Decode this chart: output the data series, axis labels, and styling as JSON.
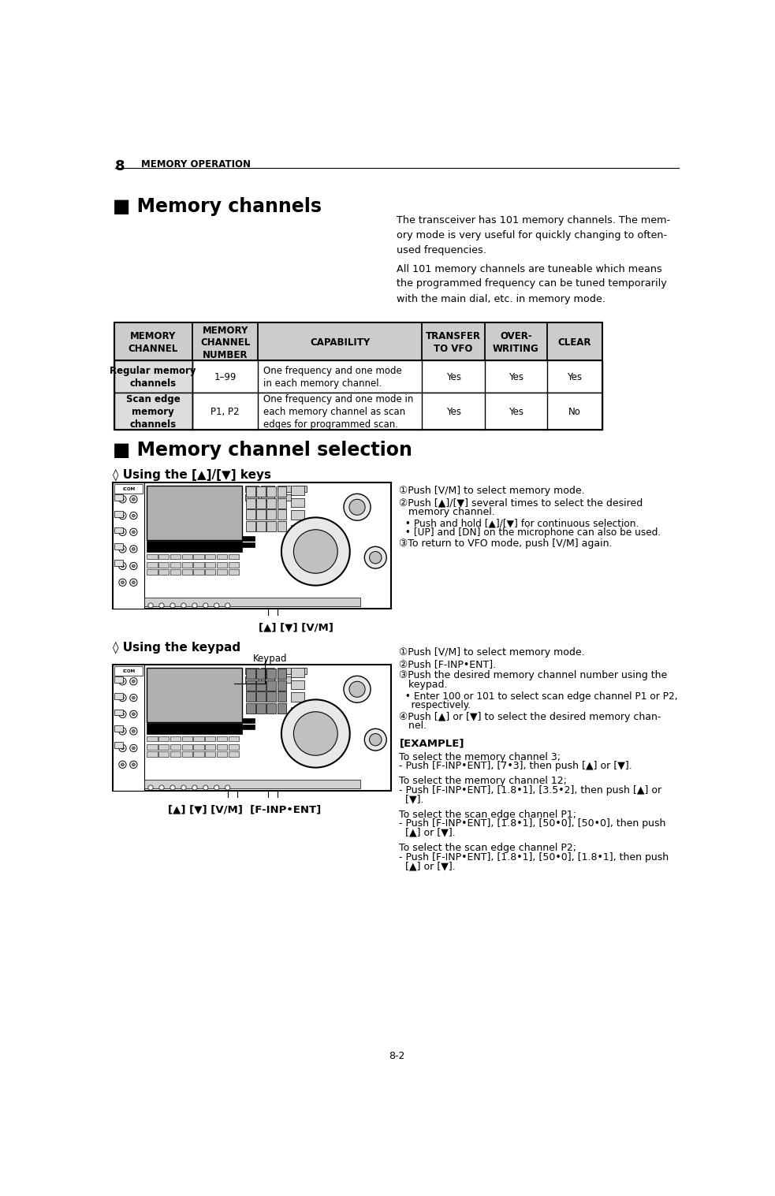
{
  "page_number": "8",
  "header_title": "MEMORY OPERATION",
  "section1_title": "■ Memory channels",
  "para1": "The transceiver has 101 memory channels. The mem-\nory mode is very useful for quickly changing to often-\nused frequencies.",
  "para2": "All 101 memory channels are tuneable which means\nthe programmed frequency can be tuned temporarily\nwith the main dial, etc. in memory mode.",
  "table_headers": [
    "MEMORY\nCHANNEL",
    "MEMORY\nCHANNEL\nNUMBER",
    "CAPABILITY",
    "TRANSFER\nTO VFO",
    "OVER-\nWRITING",
    "CLEAR"
  ],
  "table_row1_col1": "Regular memory\nchannels",
  "table_row1_col2": "1–99",
  "table_row1_col3": "One frequency and one mode\nin each memory channel.",
  "table_row1_col4": "Yes",
  "table_row1_col5": "Yes",
  "table_row1_col6": "Yes",
  "table_row2_col1": "Scan edge\nmemory\nchannels",
  "table_row2_col2": "P1, P2",
  "table_row2_col3": "One frequency and one mode in\neach memory channel as scan\nedges for programmed scan.",
  "table_row2_col4": "Yes",
  "table_row2_col5": "Yes",
  "table_row2_col6": "No",
  "section2_title": "■ Memory channel selection",
  "subsection1_title": "◊ Using the [▲]/[▼] keys",
  "keys_step1": "①Push [V/M] to select memory mode.",
  "keys_step2": "②Push [▲]/[▼] several times to select the desired",
  "keys_step2b": "   memory channel.",
  "keys_step2c": "  • Push and hold [▲]/[▼] for continuous selection.",
  "keys_step2d": "  • [UP] and [DN] on the microphone can also be used.",
  "keys_step3": "③To return to VFO mode, push [V/M] again.",
  "keys_label": "[▲] [▼] [V/M]",
  "subsection2_title": "◊ Using the keypad",
  "keypad_label": "Keypad",
  "kp_step1": "①Push [V/M] to select memory mode.",
  "kp_step2": "②Push [F-INP•ENT].",
  "kp_step3": "③Push the desired memory channel number using the",
  "kp_step3b": "   keypad.",
  "kp_step3c": "  • Enter 100 or 101 to select scan edge channel P1 or P2,",
  "kp_step3d": "    respectively.",
  "kp_step4": "④Push [▲] or [▼] to select the desired memory chan-",
  "kp_step4b": "   nel.",
  "keypad_bottom_label": "[▲] [▼] [V/M]  [F-INP•ENT]",
  "example_title": "[EXAMPLE]",
  "ex1a": "To select the memory channel 3;",
  "ex1b": "- Push [F-INP•ENT], [7•3], then push [▲] or [▼].",
  "ex2a": "To select the memory channel 12;",
  "ex2b": "- Push [F-INP•ENT], [1.8•1], [3.5•2], then push [▲] or",
  "ex2c": "  [▼].",
  "ex3a": "To select the scan edge channel P1;",
  "ex3b": "- Push [F-INP•ENT], [1.8•1], [50•0], [50•0], then push",
  "ex3c": "  [▲] or [▼].",
  "ex4a": "To select the scan edge channel P2;",
  "ex4b": "- Push [F-INP•ENT], [1.8•1], [50•0], [1.8•1], then push",
  "ex4c": "  [▲] or [▼].",
  "footer": "8-2",
  "bg_color": "#ffffff",
  "table_header_bg": "#cccccc",
  "table_gray_col1_bg": "#dddddd",
  "table_border_color": "#000000"
}
